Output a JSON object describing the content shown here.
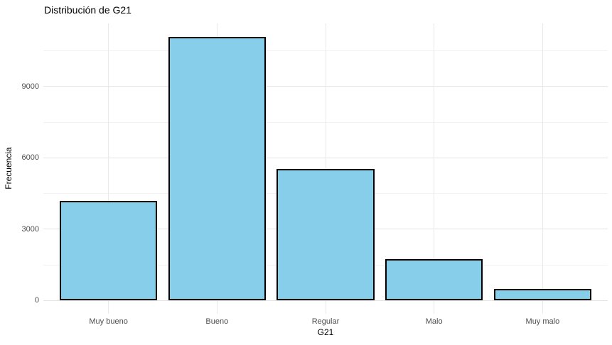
{
  "title": "Distribución de G21",
  "chart_data": {
    "type": "bar",
    "title": "Distribución de G21",
    "xlabel": "G21",
    "ylabel": "Frecuencia",
    "categories": [
      "Muy bueno",
      "Bueno",
      "Regular",
      "Malo",
      "Muy malo"
    ],
    "values": [
      4200,
      11100,
      5550,
      1750,
      500
    ],
    "yticks": [
      0,
      3000,
      6000,
      9000
    ],
    "yticks_minor": [
      1500,
      4500,
      7500,
      10500
    ],
    "ylim": [
      -555,
      11655
    ],
    "bar_width_fraction": 0.9,
    "category_edge_padding": 0.6,
    "grid": true,
    "legend": false,
    "colors": {
      "bar_fill": "#87ceeb",
      "bar_stroke": "#000000",
      "grid_major": "#e4e4e4",
      "grid_minor": "#f2f2f2",
      "tick_label": "#4d4d4d",
      "title": "#000000",
      "background": "#ffffff"
    }
  }
}
